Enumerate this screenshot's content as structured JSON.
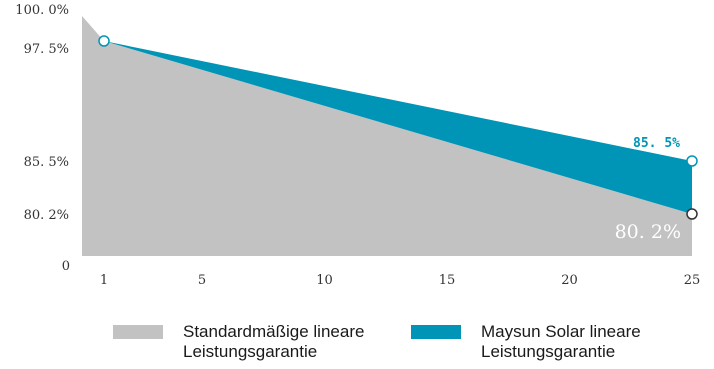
{
  "chart_data": {
    "type": "area",
    "x": [
      1,
      25
    ],
    "xticks": [
      "1",
      "5",
      "10",
      "15",
      "20",
      "25"
    ],
    "xtick_values": [
      1,
      5,
      10,
      15,
      20,
      25
    ],
    "yticks": [
      "0",
      "80. 2%",
      "85. 5%",
      "97. 5%",
      "100. 0%"
    ],
    "ytick_values": [
      0,
      80.2,
      85.5,
      97.5,
      100.0
    ],
    "series": [
      {
        "name": "Standardmäßige lineare Leistungsgarantie",
        "color": "#c2c2c2",
        "points": [
          [
            0,
            100.0
          ],
          [
            1,
            97.5
          ],
          [
            25,
            80.2
          ]
        ],
        "end_label": "80. 2%"
      },
      {
        "name": "Maysun Solar lineare Leistungsgarantie",
        "color": "#0095b6",
        "points": [
          [
            1,
            97.5
          ],
          [
            25,
            85.5
          ]
        ],
        "end_label": "85. 5%"
      }
    ],
    "xlim": [
      0,
      25
    ],
    "grid": true,
    "legend_position": "bottom"
  }
}
